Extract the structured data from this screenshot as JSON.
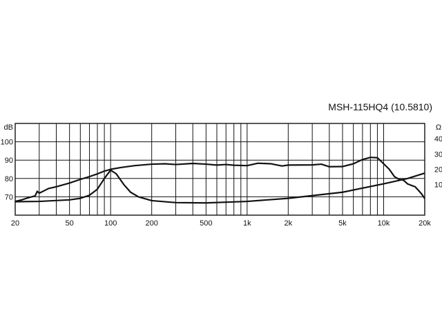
{
  "chart_data": {
    "type": "line",
    "title": "MSH-115HQ4 (10.5810)",
    "x_scale": "log",
    "xlim": [
      20,
      20000
    ],
    "x_ticks": [
      {
        "value": 20,
        "label": "20"
      },
      {
        "value": 50,
        "label": "50"
      },
      {
        "value": 100,
        "label": "100"
      },
      {
        "value": 200,
        "label": "200"
      },
      {
        "value": 500,
        "label": "500"
      },
      {
        "value": 1000,
        "label": "1k"
      },
      {
        "value": 2000,
        "label": "2k"
      },
      {
        "value": 5000,
        "label": "5k"
      },
      {
        "value": 10000,
        "label": "10k"
      },
      {
        "value": 20000,
        "label": "20k"
      }
    ],
    "y_left": {
      "unit": "dB",
      "ylim": [
        60,
        110
      ],
      "ticks": [
        70,
        80,
        90,
        100
      ]
    },
    "y_right": {
      "unit": "Ω",
      "ylim": [
        -10,
        50
      ],
      "ticks": [
        10,
        20,
        30,
        40
      ]
    },
    "grid": true,
    "series": [
      {
        "axis": "left",
        "points": [
          [
            20,
            67.5
          ],
          [
            22,
            68.2
          ],
          [
            25,
            69.5
          ],
          [
            28,
            70.5
          ],
          [
            29,
            73
          ],
          [
            30,
            72
          ],
          [
            32,
            73
          ],
          [
            35,
            74.5
          ],
          [
            40,
            75.5
          ],
          [
            50,
            77.5
          ],
          [
            60,
            79.5
          ],
          [
            70,
            81
          ],
          [
            80,
            82.5
          ],
          [
            90,
            84
          ],
          [
            100,
            85
          ],
          [
            120,
            86
          ],
          [
            150,
            87
          ],
          [
            200,
            87.8
          ],
          [
            250,
            88
          ],
          [
            300,
            87.6
          ],
          [
            400,
            88.2
          ],
          [
            500,
            87.8
          ],
          [
            600,
            87.3
          ],
          [
            700,
            87.6
          ],
          [
            800,
            87.2
          ],
          [
            1000,
            87
          ],
          [
            1200,
            88.3
          ],
          [
            1500,
            88
          ],
          [
            1800,
            86.8
          ],
          [
            2000,
            87.3
          ],
          [
            3000,
            87.4
          ],
          [
            3500,
            87.8
          ],
          [
            4000,
            86.4
          ],
          [
            5000,
            86.5
          ],
          [
            6000,
            88
          ],
          [
            7000,
            90.3
          ],
          [
            8000,
            91.5
          ],
          [
            9000,
            91.3
          ],
          [
            10000,
            88
          ],
          [
            11000,
            85
          ],
          [
            12000,
            81
          ],
          [
            13000,
            79.5
          ],
          [
            14000,
            79
          ],
          [
            15000,
            77
          ],
          [
            16000,
            76.2
          ],
          [
            17000,
            75.5
          ],
          [
            18000,
            73.5
          ],
          [
            19000,
            71.5
          ],
          [
            20000,
            69
          ]
        ]
      },
      {
        "axis": "right",
        "points": [
          [
            20,
            -1.2
          ],
          [
            30,
            -1
          ],
          [
            50,
            0
          ],
          [
            60,
            1
          ],
          [
            70,
            3
          ],
          [
            80,
            7
          ],
          [
            90,
            14
          ],
          [
            100,
            19.5
          ],
          [
            110,
            17
          ],
          [
            125,
            10
          ],
          [
            140,
            5
          ],
          [
            160,
            2
          ],
          [
            200,
            -0.5
          ],
          [
            300,
            -1.8
          ],
          [
            500,
            -2
          ],
          [
            1000,
            -1
          ],
          [
            2000,
            1
          ],
          [
            5000,
            5
          ],
          [
            10000,
            10.5
          ],
          [
            15000,
            14
          ],
          [
            20000,
            17.5
          ]
        ]
      }
    ]
  }
}
